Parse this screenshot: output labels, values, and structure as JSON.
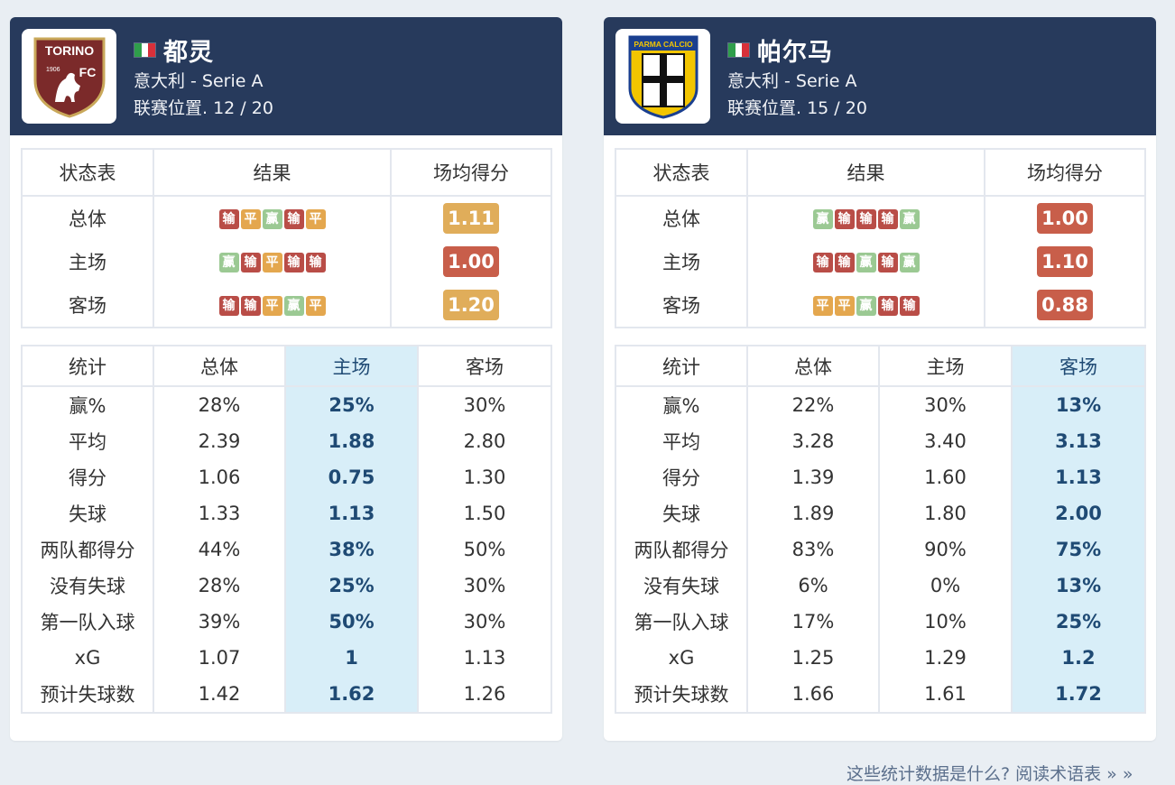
{
  "colors": {
    "header": "#273a5c",
    "lose": "#b94d47",
    "draw": "#e4a74e",
    "win": "#9bc993",
    "highlight": "#d8eef8",
    "ppg_good": "#e0ad5a",
    "ppg_bad": "#c85e4a"
  },
  "teams": [
    {
      "name": "都灵",
      "league": "意大利 - Serie A",
      "position": "联赛位置. 12 / 20",
      "logo_text": "TORINO",
      "logo_fc": "FC",
      "logo_year": "1906",
      "form_headers": [
        "状态表",
        "结果",
        "场均得分"
      ],
      "form_rows": [
        {
          "label": "总体",
          "results": [
            "输",
            "平",
            "赢",
            "输",
            "平"
          ],
          "ppg": "1.11",
          "ppg_color": "#e0ad5a"
        },
        {
          "label": "主场",
          "results": [
            "赢",
            "输",
            "平",
            "输",
            "输"
          ],
          "ppg": "1.00",
          "ppg_color": "#c85e4a"
        },
        {
          "label": "客场",
          "results": [
            "输",
            "输",
            "平",
            "赢",
            "平"
          ],
          "ppg": "1.20",
          "ppg_color": "#e0ad5a"
        }
      ],
      "stats_headers": [
        "统计",
        "总体",
        "主场",
        "客场"
      ],
      "highlight_col": 2,
      "stats_rows": [
        {
          "label": "赢%",
          "overall": "28%",
          "home": "25%",
          "away": "30%"
        },
        {
          "label": "平均",
          "overall": "2.39",
          "home": "1.88",
          "away": "2.80"
        },
        {
          "label": "得分",
          "overall": "1.06",
          "home": "0.75",
          "away": "1.30"
        },
        {
          "label": "失球",
          "overall": "1.33",
          "home": "1.13",
          "away": "1.50"
        },
        {
          "label": "两队都得分",
          "overall": "44%",
          "home": "38%",
          "away": "50%"
        },
        {
          "label": "没有失球",
          "overall": "28%",
          "home": "25%",
          "away": "30%"
        },
        {
          "label": "第一队入球",
          "overall": "39%",
          "home": "50%",
          "away": "30%"
        },
        {
          "label": "xG",
          "overall": "1.07",
          "home": "1",
          "away": "1.13"
        },
        {
          "label": "预计失球数",
          "overall": "1.42",
          "home": "1.62",
          "away": "1.26"
        }
      ]
    },
    {
      "name": "帕尔马",
      "league": "意大利 - Serie A",
      "position": "联赛位置. 15 / 20",
      "logo_text": "PARMA CALCIO",
      "form_headers": [
        "状态表",
        "结果",
        "场均得分"
      ],
      "form_rows": [
        {
          "label": "总体",
          "results": [
            "赢",
            "输",
            "输",
            "输",
            "赢"
          ],
          "ppg": "1.00",
          "ppg_color": "#c85e4a"
        },
        {
          "label": "主场",
          "results": [
            "输",
            "输",
            "赢",
            "输",
            "赢"
          ],
          "ppg": "1.10",
          "ppg_color": "#c85e4a"
        },
        {
          "label": "客场",
          "results": [
            "平",
            "平",
            "赢",
            "输",
            "输"
          ],
          "ppg": "0.88",
          "ppg_color": "#c85e4a"
        }
      ],
      "stats_headers": [
        "统计",
        "总体",
        "主场",
        "客场"
      ],
      "highlight_col": 3,
      "stats_rows": [
        {
          "label": "赢%",
          "overall": "22%",
          "home": "30%",
          "away": "13%"
        },
        {
          "label": "平均",
          "overall": "3.28",
          "home": "3.40",
          "away": "3.13"
        },
        {
          "label": "得分",
          "overall": "1.39",
          "home": "1.60",
          "away": "1.13"
        },
        {
          "label": "失球",
          "overall": "1.89",
          "home": "1.80",
          "away": "2.00"
        },
        {
          "label": "两队都得分",
          "overall": "83%",
          "home": "90%",
          "away": "75%"
        },
        {
          "label": "没有失球",
          "overall": "6%",
          "home": "0%",
          "away": "13%"
        },
        {
          "label": "第一队入球",
          "overall": "17%",
          "home": "10%",
          "away": "25%"
        },
        {
          "label": "xG",
          "overall": "1.25",
          "home": "1.29",
          "away": "1.2"
        },
        {
          "label": "预计失球数",
          "overall": "1.66",
          "home": "1.61",
          "away": "1.72"
        }
      ]
    }
  ],
  "footer": {
    "link_text": "这些统计数据是什么? 阅读术语表 » »"
  }
}
